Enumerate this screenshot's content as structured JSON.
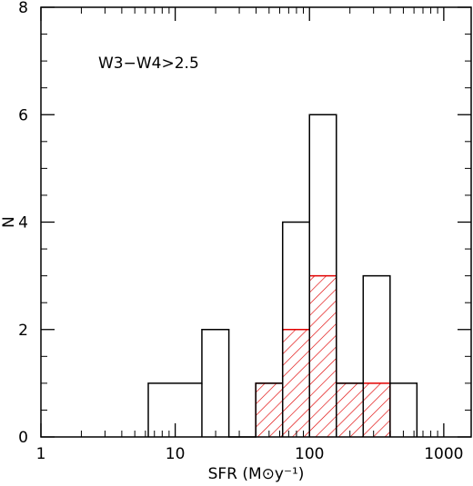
{
  "chart_data": {
    "type": "histogram",
    "x_scale": "log",
    "xlim": [
      1,
      1600
    ],
    "ylim": [
      0,
      8
    ],
    "xlabel": "SFR (M⊙y⁻¹)",
    "ylabel": "N",
    "x_ticks": [
      1,
      10,
      100,
      1000
    ],
    "x_tick_labels": [
      "1",
      "10",
      "100",
      "1000"
    ],
    "y_ticks": [
      0,
      2,
      4,
      6,
      8
    ],
    "y_tick_labels": [
      "0",
      "2",
      "4",
      "6",
      "8"
    ],
    "annotation": "W3−W4>2.5",
    "series": [
      {
        "style": "outline",
        "color": "#000000",
        "bins": [
          {
            "lo": 6.3,
            "hi": 15.8,
            "count": 1
          },
          {
            "lo": 15.8,
            "hi": 25.1,
            "count": 2
          },
          {
            "lo": 25.1,
            "hi": 39.8,
            "count": 0
          },
          {
            "lo": 39.8,
            "hi": 63.1,
            "count": 1
          },
          {
            "lo": 63.1,
            "hi": 100,
            "count": 4
          },
          {
            "lo": 100,
            "hi": 158.5,
            "count": 6
          },
          {
            "lo": 158.5,
            "hi": 251.2,
            "count": 1
          },
          {
            "lo": 251.2,
            "hi": 398.1,
            "count": 3
          },
          {
            "lo": 398.1,
            "hi": 631,
            "count": 1
          }
        ]
      },
      {
        "style": "hatched",
        "color": "#e00000",
        "bins": [
          {
            "lo": 39.8,
            "hi": 63.1,
            "count": 1
          },
          {
            "lo": 63.1,
            "hi": 100,
            "count": 2
          },
          {
            "lo": 100,
            "hi": 158.5,
            "count": 3
          },
          {
            "lo": 158.5,
            "hi": 251.2,
            "count": 1
          },
          {
            "lo": 251.2,
            "hi": 398.1,
            "count": 1
          }
        ]
      }
    ]
  }
}
